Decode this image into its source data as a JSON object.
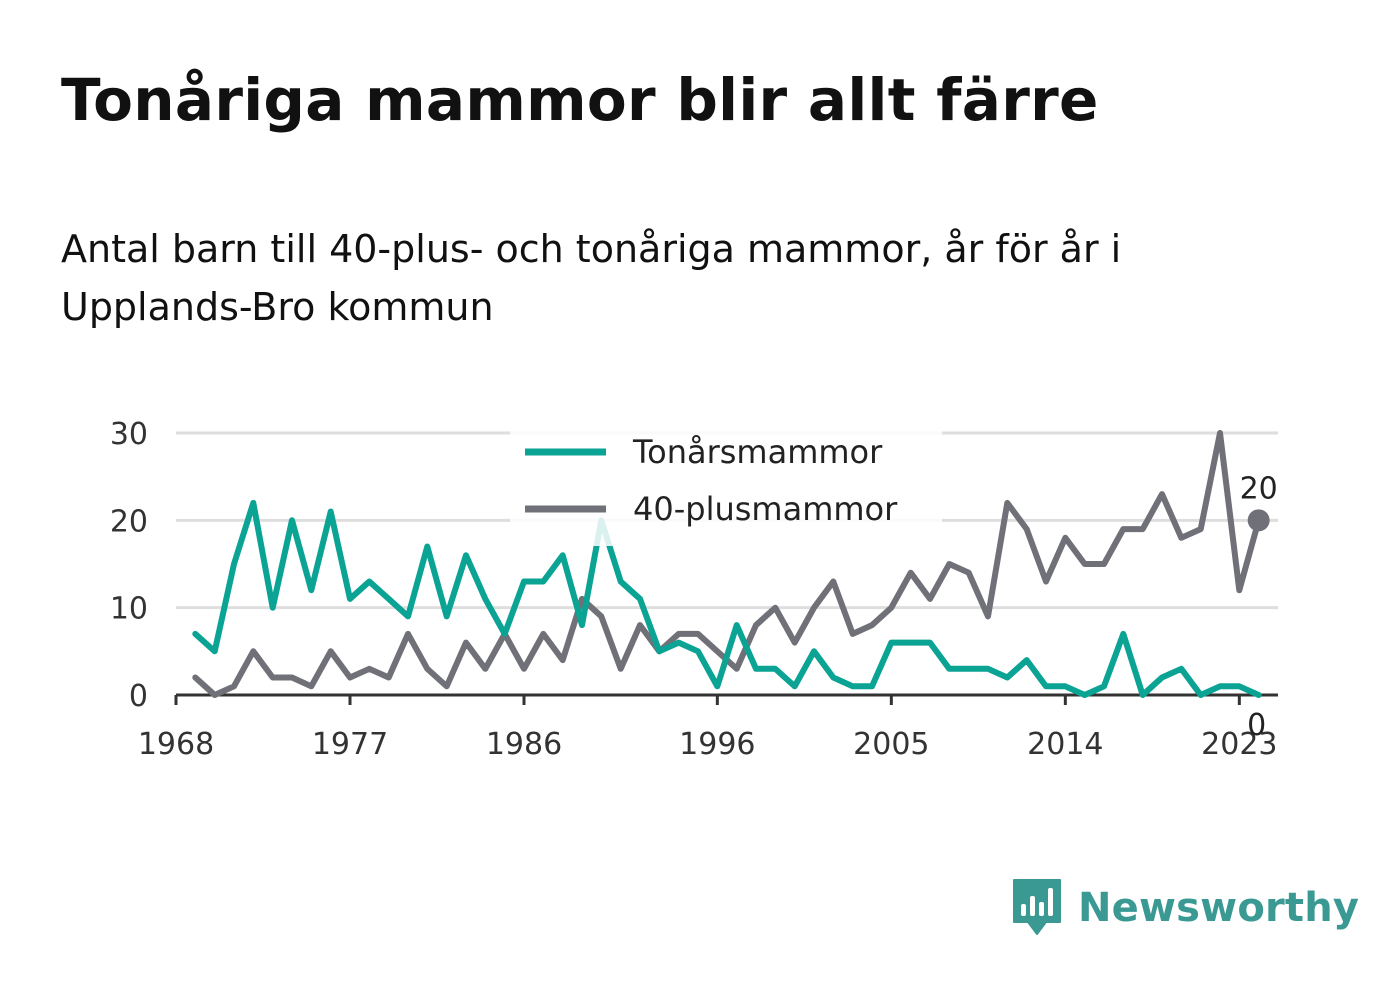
{
  "title": "Tonåriga mammor blir allt färre",
  "subtitle": "Antal barn till 40-plus- och tonåriga mammor, år för år i Upplands-Bro kommun",
  "brand": "Newsworthy",
  "colors": {
    "teal": "#0aa394",
    "gray": "#707078",
    "grid": "#dedede",
    "axis": "#333333",
    "brand": "#3a9a93"
  },
  "chart_data": {
    "type": "line",
    "xlim": [
      1968,
      2025
    ],
    "ylim": [
      0,
      30
    ],
    "y_ticks": [
      "0",
      "10",
      "20",
      "30"
    ],
    "x_ticks": [
      "1968",
      "1977",
      "1986",
      "1996",
      "2005",
      "2014",
      "2023"
    ],
    "grid": "horizontal",
    "legend_position": "top-center",
    "series": [
      {
        "name": "Tonårsmammor",
        "color": "#0aa394",
        "x": [
          1969,
          1970,
          1971,
          1972,
          1973,
          1974,
          1975,
          1976,
          1977,
          1978,
          1979,
          1980,
          1981,
          1982,
          1983,
          1984,
          1985,
          1986,
          1987,
          1988,
          1989,
          1990,
          1991,
          1992,
          1993,
          1994,
          1995,
          1996,
          1997,
          1998,
          1999,
          2000,
          2001,
          2002,
          2003,
          2004,
          2005,
          2006,
          2007,
          2008,
          2009,
          2010,
          2011,
          2012,
          2013,
          2014,
          2015,
          2016,
          2017,
          2018,
          2019,
          2020,
          2021,
          2022,
          2023,
          2024
        ],
        "values": [
          7,
          5,
          15,
          22,
          10,
          20,
          12,
          21,
          11,
          13,
          11,
          9,
          17,
          9,
          16,
          11,
          7,
          13,
          13,
          16,
          8,
          20,
          13,
          11,
          5,
          6,
          5,
          1,
          8,
          3,
          3,
          1,
          5,
          2,
          1,
          1,
          6,
          6,
          6,
          3,
          3,
          3,
          2,
          4,
          1,
          1,
          0,
          1,
          7,
          0,
          2,
          3,
          0,
          1,
          1,
          0
        ],
        "end_label": "0"
      },
      {
        "name": "40-plusmammor",
        "color": "#707078",
        "x": [
          1969,
          1970,
          1971,
          1972,
          1973,
          1974,
          1975,
          1976,
          1977,
          1978,
          1979,
          1980,
          1981,
          1982,
          1983,
          1984,
          1985,
          1986,
          1987,
          1988,
          1989,
          1990,
          1991,
          1992,
          1993,
          1994,
          1995,
          1996,
          1997,
          1998,
          1999,
          2000,
          2001,
          2002,
          2003,
          2004,
          2005,
          2006,
          2007,
          2008,
          2009,
          2010,
          2011,
          2012,
          2013,
          2014,
          2015,
          2016,
          2017,
          2018,
          2019,
          2020,
          2021,
          2022,
          2023,
          2024
        ],
        "values": [
          2,
          0,
          1,
          5,
          2,
          2,
          1,
          5,
          2,
          3,
          2,
          7,
          3,
          1,
          6,
          3,
          7,
          3,
          7,
          4,
          11,
          9,
          3,
          8,
          5,
          7,
          7,
          5,
          3,
          8,
          10,
          6,
          10,
          13,
          7,
          8,
          10,
          14,
          11,
          15,
          14,
          9,
          22,
          19,
          13,
          18,
          15,
          15,
          19,
          19,
          23,
          18,
          19,
          30,
          12,
          20
        ],
        "end_label": "20"
      }
    ]
  }
}
